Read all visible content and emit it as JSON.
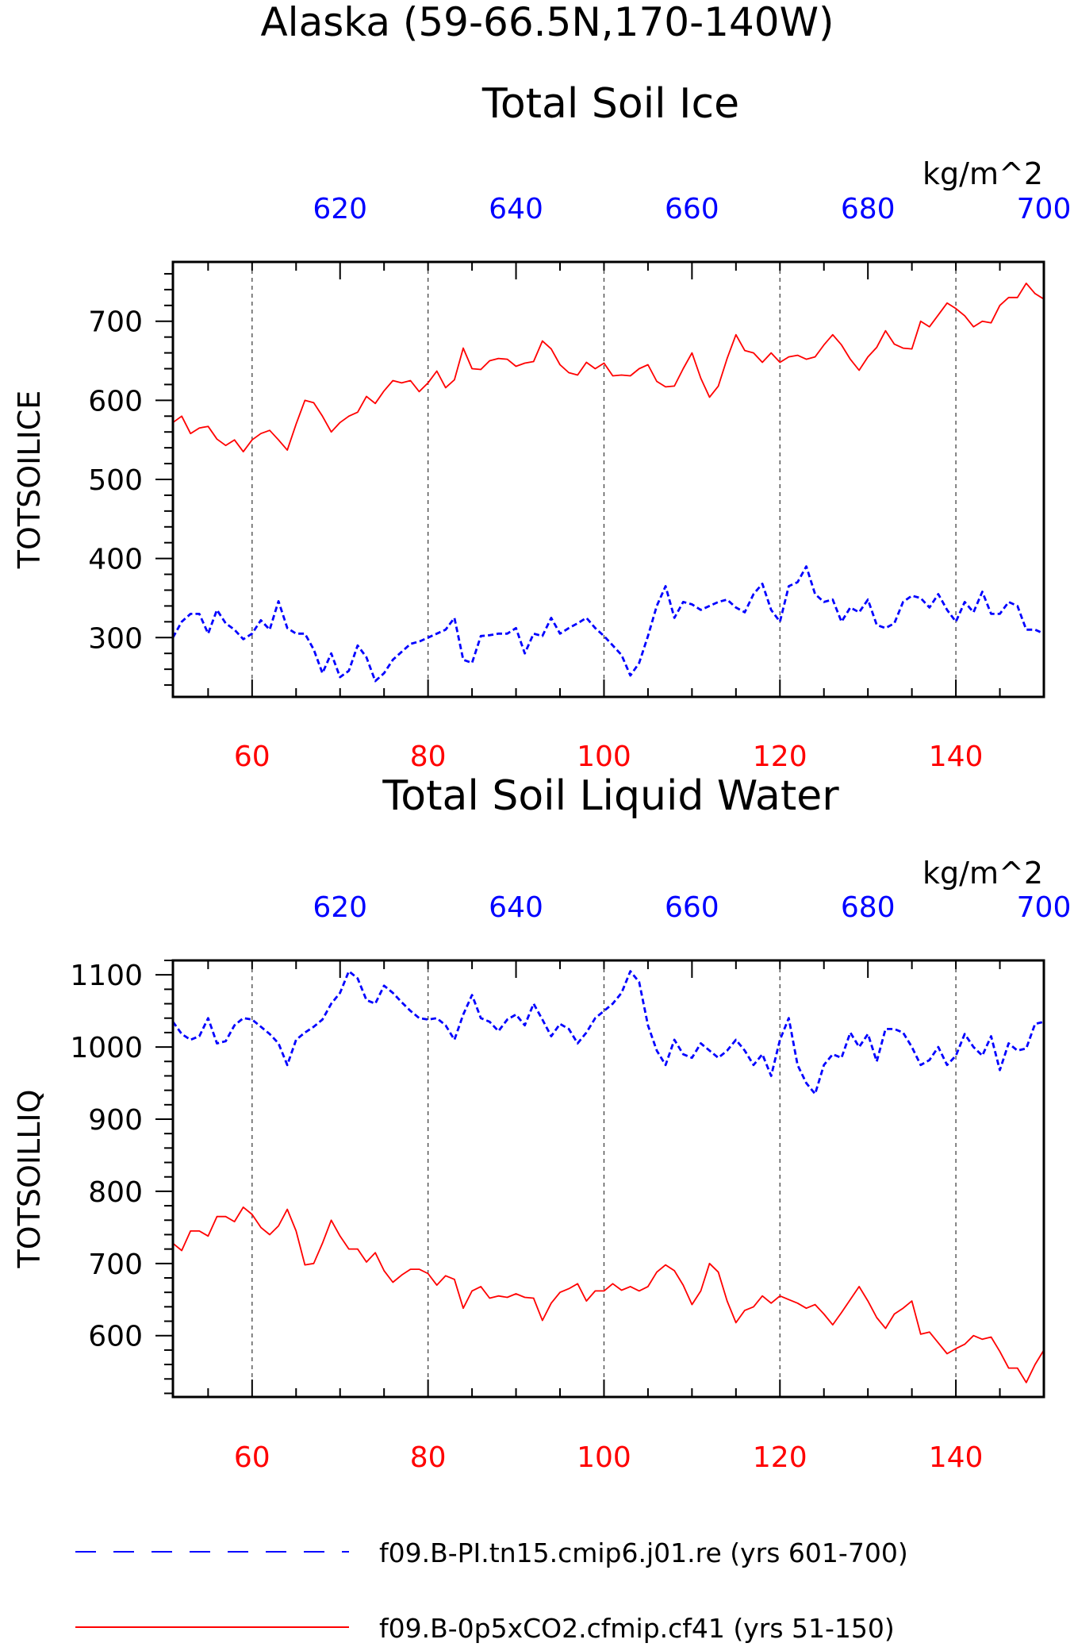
{
  "header": {
    "region_title": "Alaska (59-66.5N,170-140W)"
  },
  "colors": {
    "red": "#ff0000",
    "blue": "#0000ff",
    "axis": "#000000",
    "grid": "#444444"
  },
  "legend": {
    "entries": [
      {
        "label": "f09.B-PI.tn15.cmip6.j01.re (yrs 601-700)",
        "color": "#0000ff",
        "style": "dashed"
      },
      {
        "label": "f09.B-0p5xCO2.cfmip.cf41 (yrs 51-150)",
        "color": "#ff0000",
        "style": "solid"
      }
    ]
  },
  "chart_data": [
    {
      "type": "line",
      "title": "Total Soil Ice",
      "ylabel": "TOTSOILICE",
      "units": "kg/m^2",
      "ylim": [
        225,
        775
      ],
      "yticks": [
        300,
        400,
        500,
        600,
        700
      ],
      "xlim_bottom": [
        51,
        150
      ],
      "xticks_bottom": [
        60,
        80,
        100,
        120,
        140
      ],
      "xlim_top": [
        601,
        700
      ],
      "xticks_top": [
        620,
        640,
        660,
        680,
        700
      ],
      "grid": "vertical dashed at bottom ticks",
      "series": [
        {
          "color": "#ff0000",
          "style": "solid",
          "x_axis": "bottom",
          "x_start": 51,
          "values": [
            572,
            580,
            558,
            565,
            567,
            551,
            543,
            550,
            535,
            550,
            558,
            562,
            550,
            537,
            570,
            600,
            597,
            580,
            560,
            572,
            580,
            585,
            605,
            596,
            612,
            625,
            622,
            625,
            611,
            622,
            637,
            616,
            626,
            666,
            640,
            639,
            650,
            653,
            652,
            643,
            647,
            649,
            675,
            665,
            645,
            635,
            632,
            648,
            640,
            647,
            631,
            632,
            631,
            640,
            645,
            624,
            617,
            618,
            640,
            660,
            628,
            604,
            618,
            653,
            683,
            663,
            660,
            648,
            660,
            648,
            655,
            657,
            652,
            655,
            670,
            683,
            670,
            652,
            638,
            655,
            667,
            688,
            671,
            666,
            665,
            700,
            693,
            708,
            723,
            716,
            707,
            693,
            700,
            698,
            720,
            730,
            730,
            748,
            735,
            728
          ]
        },
        {
          "color": "#0000ff",
          "style": "dashed",
          "x_axis": "top",
          "x_start": 601,
          "values": [
            300,
            320,
            330,
            330,
            305,
            335,
            318,
            310,
            298,
            305,
            322,
            310,
            346,
            312,
            305,
            305,
            285,
            255,
            280,
            250,
            258,
            290,
            275,
            245,
            255,
            272,
            282,
            292,
            295,
            300,
            305,
            310,
            325,
            272,
            268,
            302,
            303,
            305,
            305,
            312,
            280,
            305,
            302,
            325,
            305,
            312,
            318,
            325,
            312,
            302,
            290,
            278,
            252,
            268,
            302,
            340,
            365,
            325,
            345,
            342,
            335,
            340,
            345,
            348,
            338,
            332,
            355,
            368,
            335,
            320,
            365,
            370,
            390,
            355,
            345,
            348,
            320,
            338,
            332,
            348,
            316,
            312,
            318,
            345,
            353,
            350,
            338,
            355,
            335,
            320,
            345,
            332,
            358,
            330,
            330,
            345,
            340,
            310,
            310,
            305
          ]
        }
      ]
    },
    {
      "type": "line",
      "title": "Total Soil Liquid Water",
      "ylabel": "TOTSOILLIQ",
      "units": "kg/m^2",
      "ylim": [
        515,
        1120
      ],
      "yticks": [
        600,
        700,
        800,
        900,
        1000,
        1100
      ],
      "xlim_bottom": [
        51,
        150
      ],
      "xticks_bottom": [
        60,
        80,
        100,
        120,
        140
      ],
      "xlim_top": [
        601,
        700
      ],
      "xticks_top": [
        620,
        640,
        660,
        680,
        700
      ],
      "grid": "vertical dashed at bottom ticks",
      "series": [
        {
          "color": "#ff0000",
          "style": "solid",
          "x_axis": "bottom",
          "x_start": 51,
          "values": [
            728,
            718,
            745,
            745,
            738,
            765,
            765,
            758,
            778,
            768,
            750,
            740,
            752,
            775,
            745,
            698,
            700,
            728,
            760,
            738,
            720,
            720,
            702,
            715,
            690,
            674,
            684,
            692,
            692,
            686,
            670,
            683,
            678,
            638,
            662,
            668,
            652,
            655,
            653,
            658,
            653,
            652,
            621,
            645,
            660,
            665,
            672,
            648,
            662,
            662,
            672,
            663,
            668,
            662,
            668,
            688,
            698,
            690,
            670,
            643,
            662,
            700,
            688,
            648,
            618,
            635,
            640,
            655,
            645,
            655,
            650,
            645,
            638,
            643,
            630,
            615,
            632,
            650,
            668,
            648,
            625,
            610,
            630,
            638,
            648,
            602,
            605,
            590,
            575,
            582,
            588,
            600,
            595,
            598,
            578,
            555,
            555,
            535,
            560,
            580
          ]
        },
        {
          "color": "#0000ff",
          "style": "dashed",
          "x_axis": "top",
          "x_start": 601,
          "values": [
            1035,
            1018,
            1010,
            1015,
            1040,
            1005,
            1008,
            1030,
            1040,
            1038,
            1028,
            1018,
            1005,
            975,
            1010,
            1020,
            1028,
            1038,
            1060,
            1075,
            1105,
            1095,
            1065,
            1060,
            1085,
            1075,
            1062,
            1050,
            1040,
            1038,
            1040,
            1030,
            1010,
            1045,
            1072,
            1040,
            1035,
            1022,
            1038,
            1045,
            1030,
            1060,
            1038,
            1015,
            1032,
            1025,
            1005,
            1020,
            1040,
            1050,
            1060,
            1075,
            1105,
            1090,
            1030,
            995,
            975,
            1010,
            990,
            985,
            1005,
            995,
            985,
            995,
            1010,
            995,
            975,
            990,
            960,
            1010,
            1040,
            975,
            950,
            935,
            975,
            990,
            985,
            1020,
            1000,
            1018,
            980,
            1025,
            1025,
            1020,
            1000,
            975,
            982,
            1000,
            975,
            988,
            1018,
            1000,
            988,
            1015,
            968,
            1005,
            995,
            998,
            1032,
            1035
          ]
        }
      ]
    }
  ]
}
